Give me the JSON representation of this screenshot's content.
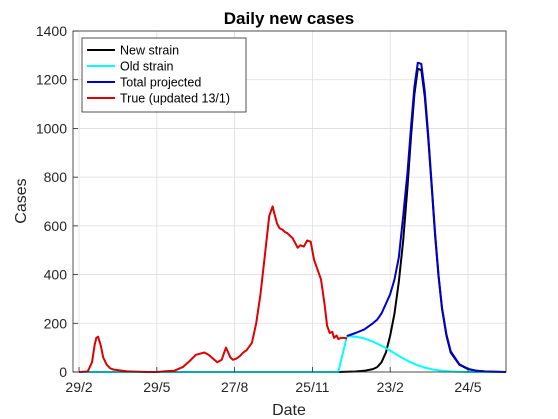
{
  "chart_data": {
    "type": "line",
    "title": "Daily new cases",
    "xlabel": "Date",
    "ylabel": "Cases",
    "grid": true,
    "legend_placement": "top-left",
    "ylim": [
      0,
      1400
    ],
    "yticks": [
      0,
      200,
      400,
      600,
      800,
      1000,
      1200,
      1400
    ],
    "xlim": [
      -7,
      494
    ],
    "xticks": [
      {
        "day": 0,
        "label": "29/2"
      },
      {
        "day": 90,
        "label": "29/5"
      },
      {
        "day": 180,
        "label": "27/8"
      },
      {
        "day": 270,
        "label": "25/11"
      },
      {
        "day": 360,
        "label": "23/2"
      },
      {
        "day": 450,
        "label": "24/5"
      }
    ],
    "series": [
      {
        "name": "New strain",
        "color": "#000000",
        "x": [
          0,
          300,
          320,
          330,
          340,
          345,
          350,
          355,
          360,
          365,
          370,
          375,
          380,
          384,
          388,
          392,
          396,
          400,
          404,
          408,
          412,
          416,
          420,
          425,
          430,
          440,
          450,
          460,
          470,
          480,
          494
        ],
        "y": [
          0,
          0,
          2,
          5,
          12,
          20,
          40,
          80,
          150,
          240,
          370,
          540,
          760,
          960,
          1140,
          1245,
          1240,
          1130,
          960,
          760,
          560,
          390,
          260,
          150,
          80,
          30,
          12,
          5,
          2,
          1,
          0
        ]
      },
      {
        "name": "Old strain",
        "color": "#00ffff",
        "x": [
          0,
          300,
          310,
          320,
          330,
          340,
          350,
          360,
          370,
          380,
          390,
          400,
          410,
          420,
          430,
          440,
          450,
          494
        ],
        "y": [
          0,
          0,
          148,
          145,
          138,
          125,
          108,
          88,
          66,
          46,
          30,
          18,
          10,
          5,
          2,
          1,
          0,
          0
        ]
      },
      {
        "name": "Total projected",
        "color": "#0000cd",
        "x": [
          310,
          320,
          330,
          340,
          345,
          350,
          355,
          360,
          365,
          370,
          375,
          380,
          384,
          388,
          392,
          396,
          400,
          404,
          408,
          412,
          416,
          420,
          425,
          430,
          440,
          450,
          460,
          470,
          480,
          494
        ],
        "y": [
          148,
          160,
          175,
          200,
          215,
          240,
          280,
          320,
          380,
          470,
          640,
          820,
          1000,
          1170,
          1270,
          1265,
          1150,
          975,
          770,
          570,
          395,
          265,
          155,
          85,
          32,
          13,
          5,
          2,
          1,
          0
        ]
      },
      {
        "name": "True (updated 13/1)",
        "color": "#e00000",
        "x": [
          0,
          10,
          15,
          18,
          20,
          22,
          25,
          28,
          32,
          36,
          40,
          45,
          50,
          55,
          60,
          70,
          80,
          90,
          100,
          110,
          120,
          128,
          135,
          140,
          145,
          150,
          155,
          160,
          165,
          168,
          170,
          172,
          175,
          178,
          182,
          186,
          190,
          194,
          200,
          205,
          210,
          215,
          220,
          224,
          226,
          229,
          232,
          235,
          238,
          241,
          244,
          247,
          250,
          253,
          256,
          260,
          264,
          268,
          272,
          276,
          280,
          284,
          287,
          290,
          293,
          295,
          298,
          300,
          303,
          306,
          310
        ],
        "y": [
          0,
          2,
          40,
          110,
          140,
          145,
          110,
          60,
          30,
          15,
          10,
          8,
          5,
          3,
          2,
          1,
          0,
          0,
          3,
          5,
          20,
          45,
          70,
          75,
          80,
          70,
          55,
          40,
          50,
          80,
          100,
          85,
          60,
          50,
          55,
          65,
          80,
          90,
          120,
          200,
          320,
          480,
          640,
          680,
          650,
          610,
          590,
          585,
          575,
          570,
          560,
          550,
          530,
          510,
          520,
          515,
          540,
          535,
          460,
          420,
          380,
          280,
          190,
          160,
          165,
          140,
          150,
          135,
          140,
          140,
          138
        ]
      }
    ]
  }
}
